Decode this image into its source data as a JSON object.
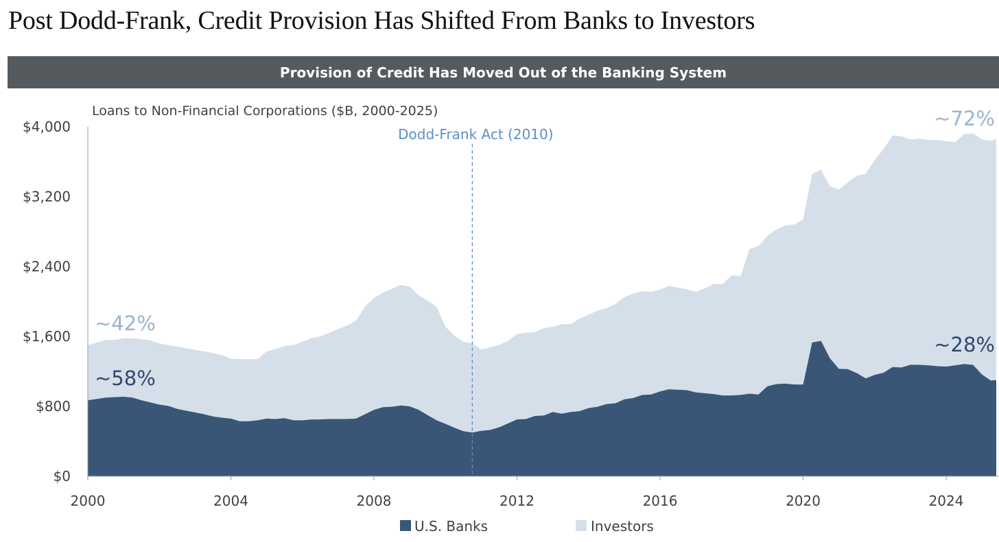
{
  "page_title": "Post Dodd-Frank, Credit Provision Has Shifted From Banks to Investors",
  "banner_title": "Provision of Credit Has Moved Out of the Banking System",
  "chart_data": {
    "type": "area",
    "stacked": true,
    "title": "Loans to Non-Financial Corporations ($B, 2000-2025)",
    "xlabel": "",
    "ylabel": "",
    "xlim": [
      2000,
      2025.4
    ],
    "ylim": [
      0,
      4000
    ],
    "xticks": [
      2000,
      2004,
      2008,
      2012,
      2016,
      2020,
      2024
    ],
    "xtick_labels": [
      "2000",
      "2004",
      "2008",
      "2012",
      "2016",
      "2020",
      "2024"
    ],
    "yticks": [
      0,
      800,
      1600,
      2400,
      3200,
      4000
    ],
    "ytick_labels": [
      "$0",
      "$800",
      "$1,600",
      "$2,400",
      "$3,200",
      "$4,000"
    ],
    "colors": {
      "banks": "#3a5677",
      "investors": "#d5dfe9",
      "annotation_light": "#9bb4cf",
      "annotation_dark": "#2f4a6b",
      "event_line": "#5b8fc7"
    },
    "legend": {
      "position": "bottom-center",
      "entries": [
        "U.S. Banks",
        "Investors"
      ]
    },
    "event": {
      "x": 2010.75,
      "label": "Dodd-Frank Act (2010)"
    },
    "annotations": [
      {
        "text": "~42%",
        "series": "Investors",
        "at": "start"
      },
      {
        "text": "~58%",
        "series": "U.S. Banks",
        "at": "start"
      },
      {
        "text": "~72%",
        "series": "Investors",
        "at": "end"
      },
      {
        "text": "~28%",
        "series": "U.S. Banks",
        "at": "end"
      }
    ],
    "x": [
      2000,
      2000.25,
      2000.5,
      2000.75,
      2001,
      2001.25,
      2001.5,
      2001.75,
      2002,
      2002.25,
      2002.5,
      2002.75,
      2003,
      2003.25,
      2003.5,
      2003.75,
      2004,
      2004.25,
      2004.5,
      2004.75,
      2005,
      2005.25,
      2005.5,
      2005.75,
      2006,
      2006.25,
      2006.5,
      2006.75,
      2007,
      2007.25,
      2007.5,
      2007.75,
      2008,
      2008.25,
      2008.5,
      2008.75,
      2009,
      2009.25,
      2009.5,
      2009.75,
      2010,
      2010.25,
      2010.5,
      2010.75,
      2011,
      2011.25,
      2011.5,
      2011.75,
      2012,
      2012.25,
      2012.5,
      2012.75,
      2013,
      2013.25,
      2013.5,
      2013.75,
      2014,
      2014.25,
      2014.5,
      2014.75,
      2015,
      2015.25,
      2015.5,
      2015.75,
      2016,
      2016.25,
      2016.5,
      2016.75,
      2017,
      2017.25,
      2017.5,
      2017.75,
      2018,
      2018.25,
      2018.5,
      2018.75,
      2019,
      2019.25,
      2019.5,
      2019.75,
      2020,
      2020.25,
      2020.5,
      2020.75,
      2021,
      2021.25,
      2021.5,
      2021.75,
      2022,
      2022.25,
      2022.5,
      2022.75,
      2023,
      2023.25,
      2023.5,
      2023.75,
      2024,
      2024.25,
      2024.5,
      2024.75,
      2025,
      2025.25,
      2025.4
    ],
    "series": [
      {
        "name": "U.S. Banks",
        "values": [
          870,
          885,
          900,
          905,
          910,
          900,
          870,
          845,
          820,
          805,
          770,
          750,
          730,
          710,
          685,
          670,
          660,
          630,
          630,
          640,
          660,
          655,
          665,
          640,
          640,
          650,
          650,
          655,
          655,
          655,
          660,
          710,
          760,
          790,
          795,
          810,
          800,
          760,
          700,
          640,
          600,
          555,
          515,
          500,
          520,
          530,
          560,
          605,
          650,
          655,
          690,
          695,
          735,
          715,
          735,
          745,
          780,
          795,
          825,
          835,
          880,
          895,
          930,
          935,
          970,
          995,
          990,
          985,
          960,
          950,
          940,
          925,
          925,
          930,
          945,
          935,
          1030,
          1055,
          1060,
          1050,
          1050,
          1530,
          1550,
          1350,
          1230,
          1225,
          1180,
          1120,
          1160,
          1185,
          1250,
          1245,
          1275,
          1275,
          1270,
          1260,
          1255,
          1270,
          1285,
          1275,
          1165,
          1095,
          1100
        ]
      },
      {
        "name": "Investors",
        "values": [
          630,
          645,
          660,
          655,
          670,
          680,
          700,
          710,
          700,
          695,
          715,
          715,
          715,
          720,
          725,
          715,
          685,
          710,
          710,
          700,
          770,
          800,
          825,
          860,
          900,
          930,
          950,
          985,
          1030,
          1070,
          1120,
          1230,
          1280,
          1310,
          1350,
          1380,
          1370,
          1310,
          1310,
          1300,
          1110,
          1055,
          1025,
          1020,
          930,
          945,
          945,
          945,
          980,
          985,
          960,
          1000,
          975,
          1025,
          1005,
          1060,
          1070,
          1100,
          1100,
          1135,
          1170,
          1195,
          1190,
          1175,
          1165,
          1185,
          1170,
          1155,
          1150,
          1200,
          1260,
          1275,
          1375,
          1360,
          1655,
          1700,
          1720,
          1770,
          1810,
          1830,
          1890,
          1930,
          1960,
          1970,
          2050,
          2140,
          2260,
          2340,
          2460,
          2560,
          2650,
          2645,
          2580,
          2590,
          2580,
          2590,
          2580,
          2555,
          2630,
          2650,
          2690,
          2745,
          2760
        ]
      }
    ]
  }
}
